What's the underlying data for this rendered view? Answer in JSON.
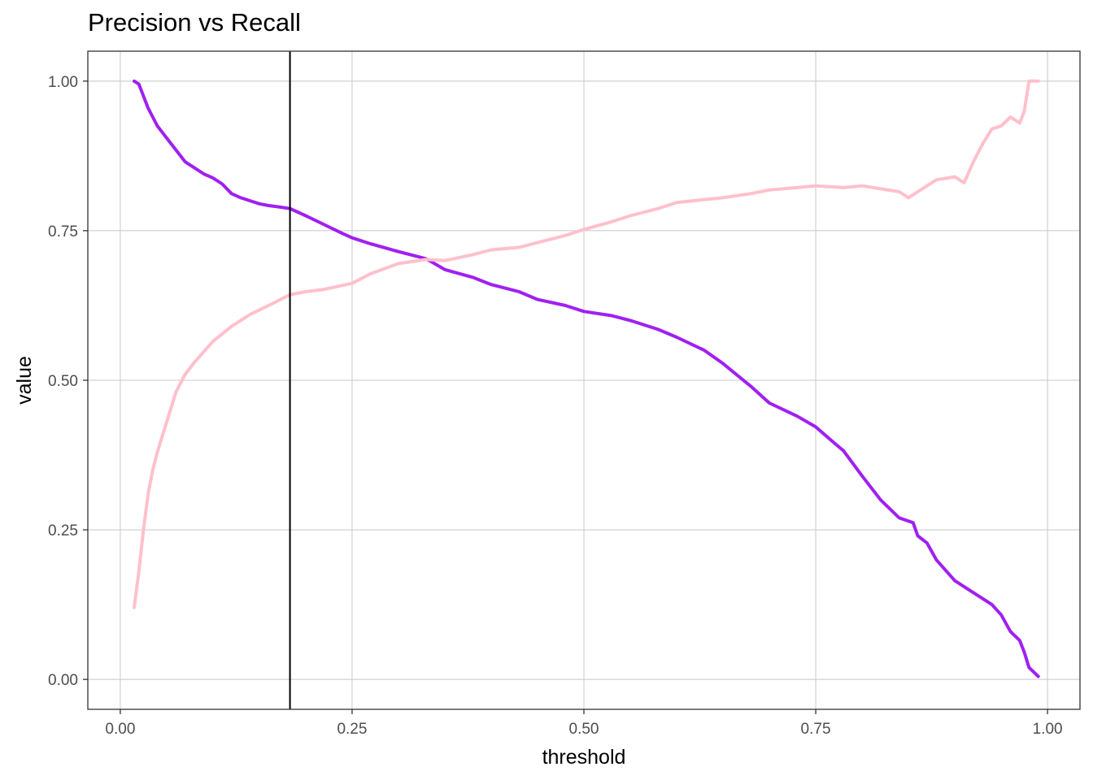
{
  "chart_data": {
    "type": "line",
    "title": "Precision vs Recall",
    "xlabel": "threshold",
    "ylabel": "value",
    "xlim": [
      -0.035,
      1.035
    ],
    "ylim": [
      -0.05,
      1.05
    ],
    "x_ticks": [
      0.0,
      0.25,
      0.5,
      0.75,
      1.0
    ],
    "x_tick_labels": [
      "0.00",
      "0.25",
      "0.50",
      "0.75",
      "1.00"
    ],
    "y_ticks": [
      0.0,
      0.25,
      0.5,
      0.75,
      1.0
    ],
    "y_tick_labels": [
      "0.00",
      "0.25",
      "0.50",
      "0.75",
      "1.00"
    ],
    "grid": true,
    "legend": "none",
    "vline": {
      "x": 0.183,
      "color": "#000000"
    },
    "series": [
      {
        "color": "#a020f0",
        "x": [
          0.015,
          0.02,
          0.025,
          0.03,
          0.04,
          0.05,
          0.06,
          0.07,
          0.08,
          0.09,
          0.1,
          0.11,
          0.12,
          0.13,
          0.14,
          0.15,
          0.16,
          0.17,
          0.183,
          0.2,
          0.22,
          0.24,
          0.25,
          0.27,
          0.3,
          0.33,
          0.35,
          0.38,
          0.4,
          0.43,
          0.45,
          0.48,
          0.5,
          0.53,
          0.55,
          0.58,
          0.6,
          0.63,
          0.65,
          0.68,
          0.7,
          0.73,
          0.75,
          0.77,
          0.78,
          0.8,
          0.82,
          0.84,
          0.855,
          0.86,
          0.87,
          0.88,
          0.9,
          0.92,
          0.94,
          0.95,
          0.96,
          0.97,
          0.975,
          0.98,
          0.99
        ],
        "y": [
          1.0,
          0.995,
          0.975,
          0.955,
          0.925,
          0.905,
          0.885,
          0.865,
          0.855,
          0.845,
          0.838,
          0.828,
          0.812,
          0.805,
          0.8,
          0.795,
          0.792,
          0.79,
          0.787,
          0.775,
          0.76,
          0.745,
          0.738,
          0.728,
          0.715,
          0.703,
          0.685,
          0.672,
          0.66,
          0.648,
          0.635,
          0.625,
          0.615,
          0.608,
          0.6,
          0.585,
          0.572,
          0.55,
          0.528,
          0.49,
          0.462,
          0.44,
          0.422,
          0.395,
          0.382,
          0.34,
          0.3,
          0.27,
          0.262,
          0.24,
          0.228,
          0.2,
          0.165,
          0.145,
          0.125,
          0.108,
          0.08,
          0.065,
          0.045,
          0.02,
          0.005
        ]
      },
      {
        "color": "#ffc0cb",
        "x": [
          0.015,
          0.02,
          0.025,
          0.03,
          0.035,
          0.04,
          0.05,
          0.06,
          0.07,
          0.08,
          0.1,
          0.12,
          0.14,
          0.16,
          0.183,
          0.2,
          0.22,
          0.25,
          0.27,
          0.3,
          0.33,
          0.35,
          0.38,
          0.4,
          0.43,
          0.45,
          0.48,
          0.5,
          0.53,
          0.55,
          0.58,
          0.6,
          0.63,
          0.65,
          0.68,
          0.7,
          0.73,
          0.75,
          0.78,
          0.8,
          0.82,
          0.84,
          0.85,
          0.86,
          0.87,
          0.88,
          0.9,
          0.91,
          0.92,
          0.93,
          0.94,
          0.95,
          0.96,
          0.965,
          0.97,
          0.975,
          0.98,
          0.985,
          0.99
        ],
        "y": [
          0.12,
          0.18,
          0.25,
          0.31,
          0.35,
          0.38,
          0.43,
          0.48,
          0.51,
          0.53,
          0.565,
          0.59,
          0.61,
          0.625,
          0.643,
          0.648,
          0.652,
          0.662,
          0.678,
          0.695,
          0.702,
          0.7,
          0.71,
          0.718,
          0.722,
          0.73,
          0.742,
          0.752,
          0.765,
          0.775,
          0.787,
          0.797,
          0.802,
          0.805,
          0.812,
          0.818,
          0.822,
          0.825,
          0.822,
          0.825,
          0.82,
          0.815,
          0.805,
          0.815,
          0.825,
          0.835,
          0.84,
          0.83,
          0.865,
          0.895,
          0.92,
          0.925,
          0.94,
          0.935,
          0.93,
          0.95,
          1.0,
          1.0,
          1.0
        ]
      }
    ]
  }
}
